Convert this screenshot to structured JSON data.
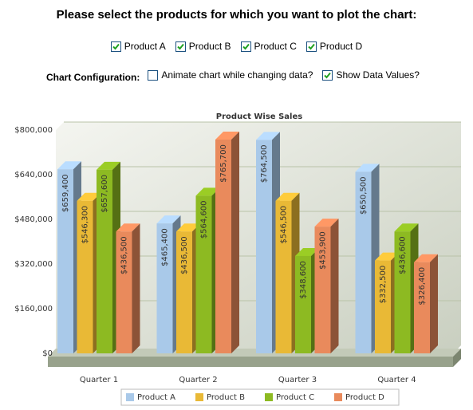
{
  "heading": "Please select the products for which you want to plot the chart:",
  "products": [
    {
      "label": "Product A",
      "checked": true
    },
    {
      "label": "Product B",
      "checked": true
    },
    {
      "label": "Product C",
      "checked": true
    },
    {
      "label": "Product D",
      "checked": true
    }
  ],
  "config": {
    "label": "Chart Configuration:",
    "options": [
      {
        "label": "Animate chart while changing data?",
        "checked": false
      },
      {
        "label": "Show Data Values?",
        "checked": true
      }
    ]
  },
  "chart_data": {
    "type": "bar3d",
    "title": "Product Wise Sales",
    "categories": [
      "Quarter 1",
      "Quarter 2",
      "Quarter 3",
      "Quarter 4"
    ],
    "series": [
      {
        "name": "Product A",
        "color": "#a9c9e9",
        "values": [
          659400,
          465400,
          764500,
          650500
        ],
        "value_labels": [
          "$659,400",
          "$465,400",
          "$764,500",
          "$650,500"
        ]
      },
      {
        "name": "Product B",
        "color": "#e9b936",
        "values": [
          546300,
          436500,
          546500,
          332500
        ],
        "value_labels": [
          "$546,300",
          "$436,500",
          "$546,500",
          "$332,500"
        ]
      },
      {
        "name": "Product C",
        "color": "#8dba22",
        "values": [
          657600,
          564600,
          348600,
          436600
        ],
        "value_labels": [
          "$657,600",
          "$564,600",
          "$348,600",
          "$436,600"
        ]
      },
      {
        "name": "Product D",
        "color": "#e98a5c",
        "values": [
          436500,
          765700,
          453900,
          326400
        ],
        "value_labels": [
          "$436,500",
          "$765,700",
          "$453,900",
          "$326,400"
        ]
      }
    ],
    "ylim": [
      0,
      800000
    ],
    "yticks": [
      {
        "value": 0,
        "label": "$0"
      },
      {
        "value": 160000,
        "label": "$160,000"
      },
      {
        "value": 320000,
        "label": "$320,000"
      },
      {
        "value": 480000,
        "label": "$480,000"
      },
      {
        "value": 640000,
        "label": "$640,000"
      },
      {
        "value": 800000,
        "label": "$800,000"
      }
    ],
    "grid": true,
    "legend": "bottom"
  }
}
